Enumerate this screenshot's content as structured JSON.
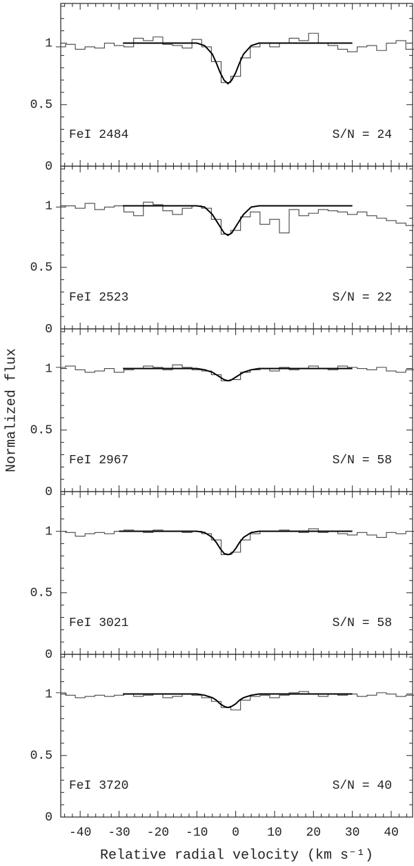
{
  "xlabel": "Relative radial velocity (km s⁻¹)",
  "ylabel": "Normalized flux",
  "chart_data": [
    {
      "type": "line",
      "annotations": [
        "FeI 2484",
        "S/N = 24"
      ],
      "xlim": [
        -45,
        45.5
      ],
      "ylim": [
        0,
        1.3
      ],
      "xticks": [
        -40,
        -30,
        -20,
        -10,
        0,
        10,
        20,
        30,
        40
      ],
      "yticks": [
        0,
        0.5,
        1
      ],
      "series": [
        {
          "color": "#444444",
          "step": true,
          "x": [
            -45,
            -42.5,
            -40,
            -37.5,
            -35,
            -32.5,
            -30,
            -27.5,
            -25,
            -22.5,
            -20,
            -17.5,
            -15,
            -12.5,
            -10,
            -7.5,
            -5,
            -2.5,
            0,
            2.5,
            5,
            7.5,
            10,
            12.5,
            15,
            17.5,
            20,
            22.5,
            25,
            27.5,
            30,
            32.5,
            35,
            37.5,
            40,
            42.5,
            45
          ],
          "values": [
            0.97,
            0.99,
            0.95,
            0.97,
            0.96,
            1.0,
            0.98,
            0.97,
            1.04,
            1.02,
            1.05,
            0.99,
            0.98,
            0.96,
            1.03,
            0.97,
            0.85,
            0.68,
            0.73,
            0.88,
            0.97,
            1.0,
            0.97,
            1.0,
            1.04,
            1.02,
            1.08,
            1.0,
            0.98,
            0.95,
            0.93,
            0.97,
            0.98,
            0.94,
            1.0,
            1.02,
            0.95
          ]
        },
        {
          "color": "#000000",
          "step": false,
          "x": [
            -29,
            -10,
            -8,
            -6,
            -5,
            -4,
            -3,
            -2,
            -1,
            0,
            1,
            2,
            4,
            6,
            30
          ],
          "values": [
            1,
            1,
            0.98,
            0.91,
            0.84,
            0.76,
            0.7,
            0.67,
            0.7,
            0.76,
            0.84,
            0.91,
            0.98,
            1,
            1
          ]
        }
      ]
    },
    {
      "type": "line",
      "annotations": [
        "FeI 2523",
        "S/N = 22"
      ],
      "xlim": [
        -45,
        45.5
      ],
      "ylim": [
        0,
        1.3
      ],
      "xticks": [
        -40,
        -30,
        -20,
        -10,
        0,
        10,
        20,
        30,
        40
      ],
      "yticks": [
        0,
        0.5,
        1
      ],
      "series": [
        {
          "color": "#444444",
          "step": true,
          "x": [
            -45,
            -42.5,
            -40,
            -37.5,
            -35,
            -32.5,
            -30,
            -27.5,
            -25,
            -22.5,
            -20,
            -17.5,
            -15,
            -12.5,
            -10,
            -7.5,
            -5,
            -2.5,
            0,
            2.5,
            5,
            7.5,
            10,
            12.5,
            15,
            17.5,
            20,
            22.5,
            25,
            27.5,
            30,
            32.5,
            35,
            37.5,
            40,
            42.5,
            45
          ],
          "values": [
            0.99,
            1.0,
            0.98,
            1.02,
            0.97,
            0.99,
            1.0,
            0.95,
            0.92,
            1.03,
            1.01,
            0.96,
            0.93,
            0.98,
            1.0,
            0.98,
            0.89,
            0.77,
            0.8,
            0.91,
            0.95,
            0.85,
            0.89,
            0.78,
            0.97,
            0.92,
            0.94,
            0.97,
            0.96,
            0.95,
            0.93,
            0.95,
            0.92,
            0.9,
            0.88,
            0.86,
            0.84
          ]
        },
        {
          "color": "#000000",
          "step": false,
          "x": [
            -29,
            -10,
            -8,
            -6,
            -5,
            -4,
            -3,
            -2,
            -1,
            0,
            1,
            2,
            4,
            6,
            30
          ],
          "values": [
            1,
            1,
            0.99,
            0.93,
            0.88,
            0.83,
            0.78,
            0.76,
            0.78,
            0.83,
            0.88,
            0.93,
            0.99,
            1,
            1
          ]
        }
      ]
    },
    {
      "type": "line",
      "annotations": [
        "FeI 2967",
        "S/N = 58"
      ],
      "xlim": [
        -45,
        45.5
      ],
      "ylim": [
        0,
        1.3
      ],
      "xticks": [
        -40,
        -30,
        -20,
        -10,
        0,
        10,
        20,
        30,
        40
      ],
      "yticks": [
        0,
        0.5,
        1
      ],
      "series": [
        {
          "color": "#444444",
          "step": true,
          "x": [
            -45,
            -42.5,
            -40,
            -37.5,
            -35,
            -32.5,
            -30,
            -27.5,
            -25,
            -22.5,
            -20,
            -17.5,
            -15,
            -12.5,
            -10,
            -7.5,
            -5,
            -2.5,
            0,
            2.5,
            5,
            7.5,
            10,
            12.5,
            15,
            17.5,
            20,
            22.5,
            25,
            27.5,
            30,
            32.5,
            35,
            37.5,
            40,
            42.5,
            45
          ],
          "values": [
            1.01,
            1.02,
            0.99,
            0.97,
            0.98,
            1.0,
            0.97,
            0.99,
            1.0,
            1.02,
            1.01,
            0.99,
            1.03,
            1.01,
            0.99,
            0.98,
            0.95,
            0.9,
            0.91,
            0.97,
            0.99,
            1.0,
            0.98,
            1.01,
            0.99,
            1.0,
            1.02,
            1.0,
            0.99,
            1.02,
            1.01,
            1.0,
            0.99,
            1.01,
            0.98,
            0.97,
            0.99
          ]
        },
        {
          "color": "#000000",
          "step": false,
          "x": [
            -29,
            -10,
            -8,
            -6,
            -5,
            -4,
            -3,
            -2,
            -1,
            0,
            1,
            2,
            4,
            6,
            30
          ],
          "values": [
            1,
            1,
            0.99,
            0.97,
            0.95,
            0.93,
            0.91,
            0.9,
            0.91,
            0.93,
            0.95,
            0.97,
            0.99,
            1,
            1
          ]
        }
      ]
    },
    {
      "type": "line",
      "annotations": [
        "FeI 3021",
        "S/N = 58"
      ],
      "xlim": [
        -45,
        45.5
      ],
      "ylim": [
        0,
        1.3
      ],
      "xticks": [
        -40,
        -30,
        -20,
        -10,
        0,
        10,
        20,
        30,
        40
      ],
      "yticks": [
        0,
        0.5,
        1
      ],
      "series": [
        {
          "color": "#444444",
          "step": true,
          "x": [
            -45,
            -42.5,
            -40,
            -37.5,
            -35,
            -32.5,
            -30,
            -27.5,
            -25,
            -22.5,
            -20,
            -17.5,
            -15,
            -12.5,
            -10,
            -7.5,
            -5,
            -2.5,
            0,
            2.5,
            5,
            7.5,
            10,
            12.5,
            15,
            17.5,
            20,
            22.5,
            25,
            27.5,
            30,
            32.5,
            35,
            37.5,
            40,
            42.5,
            45
          ],
          "values": [
            1.0,
            0.99,
            0.96,
            0.98,
            0.99,
            0.98,
            1.0,
            1.01,
            1.0,
            0.99,
            1.01,
            1.0,
            1.0,
            0.99,
            1.0,
            0.98,
            0.93,
            0.81,
            0.83,
            0.93,
            0.98,
            1.0,
            1.0,
            1.01,
            1.0,
            0.99,
            1.02,
            0.99,
            1.0,
            0.98,
            0.97,
            0.99,
            0.97,
            0.95,
            0.99,
            0.98,
            1.0
          ]
        },
        {
          "color": "#000000",
          "step": false,
          "x": [
            -30,
            -10,
            -8,
            -6,
            -5,
            -4,
            -3,
            -2,
            -1,
            0,
            1,
            2,
            4,
            6,
            30
          ],
          "values": [
            1,
            1,
            0.99,
            0.95,
            0.91,
            0.86,
            0.82,
            0.81,
            0.82,
            0.86,
            0.91,
            0.95,
            0.99,
            1,
            1
          ]
        }
      ]
    },
    {
      "type": "line",
      "annotations": [
        "FeI 3720",
        "S/N = 40"
      ],
      "xlim": [
        -45,
        45.5
      ],
      "ylim": [
        0,
        1.3
      ],
      "xticks": [
        -40,
        -30,
        -20,
        -10,
        0,
        10,
        20,
        30,
        40
      ],
      "yticks": [
        0,
        0.5,
        1
      ],
      "series": [
        {
          "color": "#444444",
          "step": true,
          "x": [
            -45,
            -42.5,
            -40,
            -37.5,
            -35,
            -32.5,
            -30,
            -27.5,
            -25,
            -22.5,
            -20,
            -17.5,
            -15,
            -12.5,
            -10,
            -7.5,
            -5,
            -2.5,
            0,
            2.5,
            5,
            7.5,
            10,
            12.5,
            15,
            17.5,
            20,
            22.5,
            25,
            27.5,
            30,
            32.5,
            35,
            37.5,
            40,
            42.5,
            45
          ],
          "values": [
            1.01,
            0.99,
            0.97,
            0.98,
            0.99,
            0.98,
            0.99,
            1.0,
            0.98,
            0.99,
            1.0,
            0.97,
            0.98,
            1.0,
            0.99,
            0.97,
            0.94,
            0.89,
            0.87,
            0.95,
            0.98,
            0.99,
            0.97,
            0.99,
            1.01,
            1.02,
            1.0,
            0.98,
            1.0,
            0.99,
            1.0,
            0.98,
            0.99,
            1.01,
            1.0,
            0.98,
            0.99
          ]
        },
        {
          "color": "#000000",
          "step": false,
          "x": [
            -29,
            -10,
            -8,
            -6,
            -5,
            -4,
            -3,
            -2,
            -1,
            0,
            1,
            2,
            4,
            6,
            30
          ],
          "values": [
            1,
            1,
            0.99,
            0.97,
            0.95,
            0.92,
            0.9,
            0.89,
            0.9,
            0.92,
            0.95,
            0.97,
            0.99,
            1,
            1
          ]
        }
      ]
    }
  ]
}
